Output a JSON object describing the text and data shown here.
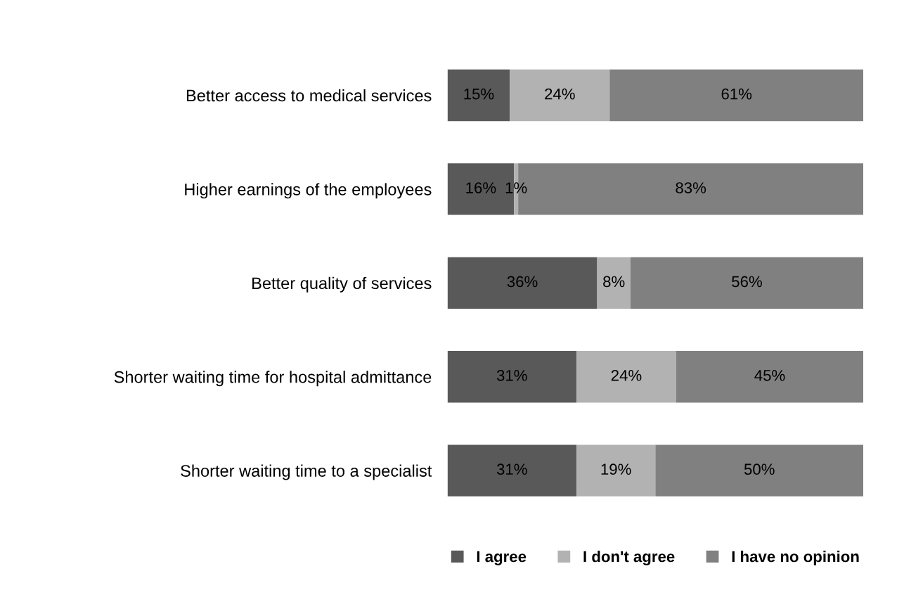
{
  "chart_data": {
    "type": "bar",
    "orientation": "horizontal",
    "stacked": true,
    "categories": [
      "Better access to medical services",
      "Higher earnings of the employees",
      "Better quality of services",
      "Shorter waiting time for hospital admittance",
      "Shorter waiting time to a specialist"
    ],
    "series": [
      {
        "name": "I agree",
        "color": "#595959",
        "values": [
          15,
          16,
          36,
          31,
          31
        ],
        "value_labels": [
          "15%",
          "16%",
          "36%",
          "31%",
          "31%"
        ]
      },
      {
        "name": "I don't agree",
        "color": "#b2b2b2",
        "values": [
          24,
          1,
          8,
          24,
          19
        ],
        "value_labels": [
          "24%",
          "1%",
          "8%",
          "24%",
          "19%"
        ]
      },
      {
        "name": "I have no opinion",
        "color": "#808080",
        "values": [
          61,
          83,
          56,
          45,
          50
        ],
        "value_labels": [
          "61%",
          "83%",
          "56%",
          "45%",
          "50%"
        ]
      }
    ],
    "legend": "bottom",
    "grid": false
  }
}
